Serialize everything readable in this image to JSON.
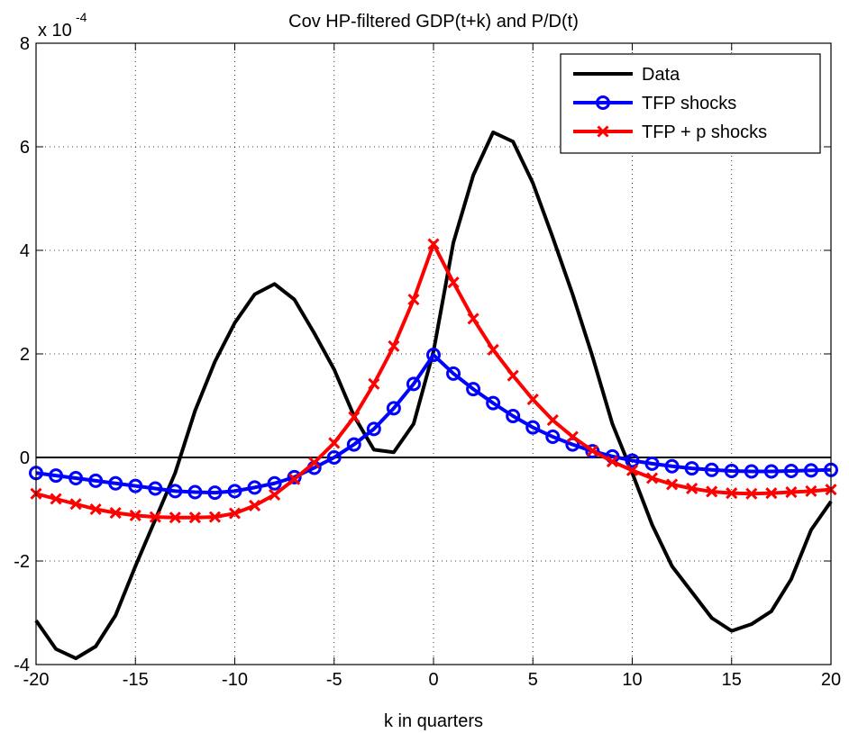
{
  "chart_data": {
    "type": "line",
    "title": "Cov HP-filtered GDP(t+k) and P/D(t)",
    "xlabel": "k in quarters",
    "ylabel": "",
    "scale_label": "x 10",
    "scale_exponent": "-4",
    "xlim": [
      -20,
      20
    ],
    "ylim": [
      -4,
      8
    ],
    "xticks": [
      -20,
      -15,
      -10,
      -5,
      0,
      5,
      10,
      15,
      20
    ],
    "yticks": [
      -4,
      -2,
      0,
      2,
      4,
      6,
      8
    ],
    "xtick_labels": [
      "-20",
      "-15",
      "-10",
      "-5",
      "0",
      "5",
      "10",
      "15",
      "20"
    ],
    "ytick_labels": [
      "-4",
      "-2",
      "0",
      "2",
      "4",
      "6",
      "8"
    ],
    "grid": true,
    "legend_position": "top-right",
    "x": [
      -20,
      -19,
      -18,
      -17,
      -16,
      -15,
      -14,
      -13,
      -12,
      -11,
      -10,
      -9,
      -8,
      -7,
      -6,
      -5,
      -4,
      -3,
      -2,
      -1,
      0,
      1,
      2,
      3,
      4,
      5,
      6,
      7,
      8,
      9,
      10,
      11,
      12,
      13,
      14,
      15,
      16,
      17,
      18,
      19,
      20
    ],
    "series": [
      {
        "name": "Data",
        "color": "#000000",
        "marker": "none",
        "values": [
          -3.15,
          -3.7,
          -3.88,
          -3.65,
          -3.05,
          -2.1,
          -1.2,
          -0.3,
          0.9,
          1.85,
          2.6,
          3.15,
          3.35,
          3.05,
          2.4,
          1.7,
          0.8,
          0.15,
          0.1,
          0.65,
          2.05,
          4.15,
          5.45,
          6.28,
          6.1,
          5.3,
          4.25,
          3.15,
          1.95,
          0.65,
          -0.3,
          -1.3,
          -2.1,
          -2.6,
          -3.1,
          -3.35,
          -3.22,
          -2.97,
          -2.35,
          -1.4,
          -0.85
        ]
      },
      {
        "name": "TFP shocks",
        "color": "#0000ff",
        "marker": "circle",
        "values": [
          -0.3,
          -0.35,
          -0.4,
          -0.45,
          -0.5,
          -0.55,
          -0.6,
          -0.65,
          -0.67,
          -0.68,
          -0.65,
          -0.58,
          -0.5,
          -0.38,
          -0.2,
          0.0,
          0.25,
          0.55,
          0.95,
          1.42,
          1.98,
          1.62,
          1.32,
          1.05,
          0.8,
          0.58,
          0.4,
          0.25,
          0.12,
          0.02,
          -0.06,
          -0.12,
          -0.17,
          -0.21,
          -0.24,
          -0.26,
          -0.27,
          -0.27,
          -0.26,
          -0.25,
          -0.24
        ]
      },
      {
        "name": "TFP + p shocks",
        "color": "#ff0000",
        "marker": "x",
        "values": [
          -0.7,
          -0.8,
          -0.9,
          -1.0,
          -1.07,
          -1.12,
          -1.15,
          -1.16,
          -1.16,
          -1.15,
          -1.08,
          -0.93,
          -0.72,
          -0.42,
          -0.1,
          0.28,
          0.78,
          1.42,
          2.15,
          3.05,
          4.12,
          3.38,
          2.68,
          2.08,
          1.58,
          1.12,
          0.72,
          0.4,
          0.13,
          -0.08,
          -0.25,
          -0.4,
          -0.52,
          -0.6,
          -0.66,
          -0.69,
          -0.7,
          -0.69,
          -0.67,
          -0.65,
          -0.62
        ]
      }
    ]
  }
}
